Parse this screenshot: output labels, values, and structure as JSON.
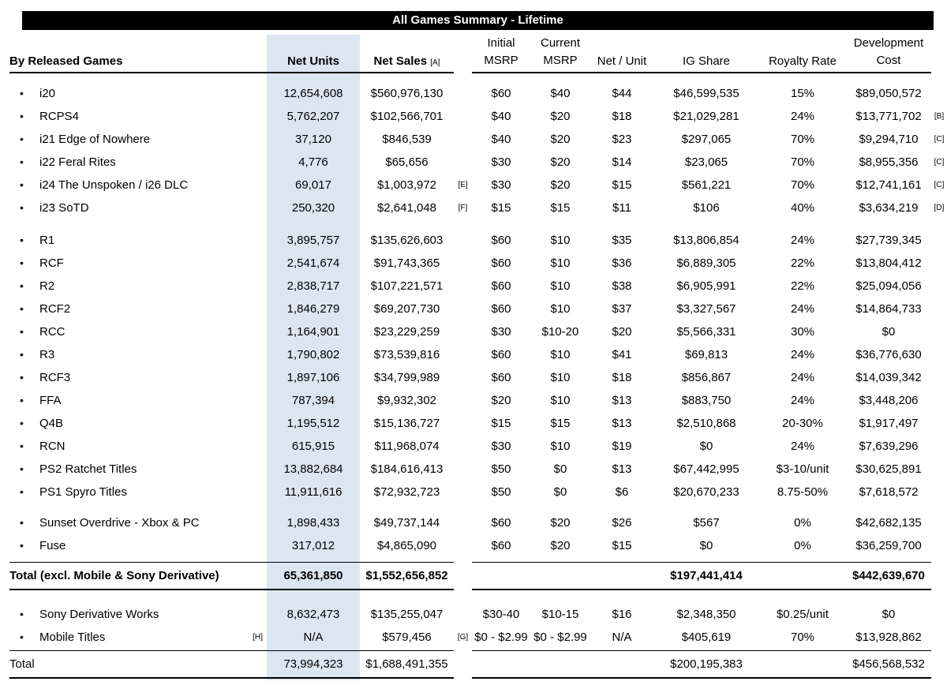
{
  "title": "All Games Summary - Lifetime",
  "accent_color": "#dce6f1",
  "header": {
    "by_released_games": "By Released Games",
    "net_units": "Net Units",
    "net_sales": "Net Sales",
    "net_sales_note": "[A]",
    "initial_msrp_line1": "Initial",
    "initial_msrp_line2": "MSRP",
    "current_msrp_line1": "Current",
    "current_msrp_line2": "MSRP",
    "net_per_unit": "Net / Unit",
    "ig_share": "IG Share",
    "royalty_rate": "Royalty Rate",
    "development_cost_line1": "Development",
    "development_cost_line2": "Cost"
  },
  "groups": [
    {
      "rows": [
        {
          "name": "i20",
          "net_units": "12,654,608",
          "net_sales": "$560,976,130",
          "initial_msrp": "$60",
          "current_msrp": "$40",
          "net_per_unit": "$44",
          "ig_share": "$46,599,535",
          "royalty_rate": "15%",
          "dev_cost": "$89,050,572"
        },
        {
          "name": "RCPS4",
          "net_units": "5,762,207",
          "net_sales": "$102,566,701",
          "initial_msrp": "$40",
          "current_msrp": "$20",
          "net_per_unit": "$18",
          "ig_share": "$21,029,281",
          "royalty_rate": "24%",
          "dev_cost": "$13,771,702",
          "note_dev": "[B]"
        },
        {
          "name": "i21 Edge of Nowhere",
          "net_units": "37,120",
          "net_sales": "$846,539",
          "initial_msrp": "$40",
          "current_msrp": "$20",
          "net_per_unit": "$23",
          "ig_share": "$297,065",
          "royalty_rate": "70%",
          "dev_cost": "$9,294,710",
          "note_dev": "[C]"
        },
        {
          "name": "i22 Feral Rites",
          "net_units": "4,776",
          "net_sales": "$65,656",
          "initial_msrp": "$30",
          "current_msrp": "$20",
          "net_per_unit": "$14",
          "ig_share": "$23,065",
          "royalty_rate": "70%",
          "dev_cost": "$8,955,356",
          "note_dev": "[C]"
        },
        {
          "name": "i24 The Unspoken / i26 DLC",
          "net_units": "69,017",
          "net_sales": "$1,003,972",
          "note_sales": "[E]",
          "initial_msrp": "$30",
          "current_msrp": "$20",
          "net_per_unit": "$15",
          "ig_share": "$561,221",
          "royalty_rate": "70%",
          "dev_cost": "$12,741,161",
          "note_dev": "[C]"
        },
        {
          "name": "i23 SoTD",
          "net_units": "250,320",
          "net_sales": "$2,641,048",
          "note_sales": "[F]",
          "initial_msrp": "$15",
          "current_msrp": "$15",
          "net_per_unit": "$11",
          "ig_share": "$106",
          "royalty_rate": "40%",
          "dev_cost": "$3,634,219",
          "note_dev": "[D]"
        }
      ]
    },
    {
      "rows": [
        {
          "name": "R1",
          "net_units": "3,895,757",
          "net_sales": "$135,626,603",
          "initial_msrp": "$60",
          "current_msrp": "$10",
          "net_per_unit": "$35",
          "ig_share": "$13,806,854",
          "royalty_rate": "24%",
          "dev_cost": "$27,739,345"
        },
        {
          "name": "RCF",
          "net_units": "2,541,674",
          "net_sales": "$91,743,365",
          "initial_msrp": "$60",
          "current_msrp": "$10",
          "net_per_unit": "$36",
          "ig_share": "$6,889,305",
          "royalty_rate": "22%",
          "dev_cost": "$13,804,412"
        },
        {
          "name": "R2",
          "net_units": "2,838,717",
          "net_sales": "$107,221,571",
          "initial_msrp": "$60",
          "current_msrp": "$10",
          "net_per_unit": "$38",
          "ig_share": "$6,905,991",
          "royalty_rate": "22%",
          "dev_cost": "$25,094,056"
        },
        {
          "name": "RCF2",
          "net_units": "1,846,279",
          "net_sales": "$69,207,730",
          "initial_msrp": "$60",
          "current_msrp": "$10",
          "net_per_unit": "$37",
          "ig_share": "$3,327,567",
          "royalty_rate": "24%",
          "dev_cost": "$14,864,733"
        },
        {
          "name": "RCC",
          "net_units": "1,164,901",
          "net_sales": "$23,229,259",
          "initial_msrp": "$30",
          "current_msrp": "$10-20",
          "net_per_unit": "$20",
          "ig_share": "$5,566,331",
          "royalty_rate": "30%",
          "dev_cost": "$0"
        },
        {
          "name": "R3",
          "net_units": "1,790,802",
          "net_sales": "$73,539,816",
          "initial_msrp": "$60",
          "current_msrp": "$10",
          "net_per_unit": "$41",
          "ig_share": "$69,813",
          "royalty_rate": "24%",
          "dev_cost": "$36,776,630"
        },
        {
          "name": "RCF3",
          "net_units": "1,897,106",
          "net_sales": "$34,799,989",
          "initial_msrp": "$60",
          "current_msrp": "$10",
          "net_per_unit": "$18",
          "ig_share": "$856,867",
          "royalty_rate": "24%",
          "dev_cost": "$14,039,342"
        },
        {
          "name": "FFA",
          "net_units": "787,394",
          "net_sales": "$9,932,302",
          "initial_msrp": "$20",
          "current_msrp": "$10",
          "net_per_unit": "$13",
          "ig_share": "$883,750",
          "royalty_rate": "24%",
          "dev_cost": "$3,448,206"
        },
        {
          "name": "Q4B",
          "net_units": "1,195,512",
          "net_sales": "$15,136,727",
          "initial_msrp": "$15",
          "current_msrp": "$15",
          "net_per_unit": "$13",
          "ig_share": "$2,510,868",
          "royalty_rate": "20-30%",
          "dev_cost": "$1,917,497"
        },
        {
          "name": "RCN",
          "net_units": "615,915",
          "net_sales": "$11,968,074",
          "initial_msrp": "$30",
          "current_msrp": "$10",
          "net_per_unit": "$19",
          "ig_share": "$0",
          "royalty_rate": "24%",
          "dev_cost": "$7,639,296"
        },
        {
          "name": "PS2 Ratchet Titles",
          "net_units": "13,882,684",
          "net_sales": "$184,616,413",
          "initial_msrp": "$50",
          "current_msrp": "$0",
          "net_per_unit": "$13",
          "ig_share": "$67,442,995",
          "royalty_rate": "$3-10/unit",
          "dev_cost": "$30,625,891"
        },
        {
          "name": "PS1 Spyro Titles",
          "net_units": "11,911,616",
          "net_sales": "$72,932,723",
          "initial_msrp": "$50",
          "current_msrp": "$0",
          "net_per_unit": "$6",
          "ig_share": "$20,670,233",
          "royalty_rate": "8.75-50%",
          "dev_cost": "$7,618,572"
        }
      ]
    },
    {
      "rows": [
        {
          "name": "Sunset Overdrive - Xbox & PC",
          "net_units": "1,898,433",
          "net_sales": "$49,737,144",
          "initial_msrp": "$60",
          "current_msrp": "$20",
          "net_per_unit": "$26",
          "ig_share": "$567",
          "royalty_rate": "0%",
          "dev_cost": "$42,682,135"
        },
        {
          "name": "Fuse",
          "net_units": "317,012",
          "net_sales": "$4,865,090",
          "initial_msrp": "$60",
          "current_msrp": "$20",
          "net_per_unit": "$15",
          "ig_share": "$0",
          "royalty_rate": "0%",
          "dev_cost": "$36,259,700"
        }
      ]
    },
    {
      "rows": [
        {
          "name": "Sony Derivative Works",
          "net_units": "8,632,473",
          "net_sales": "$135,255,047",
          "initial_msrp": "$30-40",
          "current_msrp": "$10-15",
          "net_per_unit": "$16",
          "ig_share": "$2,348,350",
          "royalty_rate": "$0.25/unit",
          "dev_cost": "$0"
        },
        {
          "name": "Mobile Titles",
          "note_name": "[H]",
          "net_units": "N/A",
          "net_sales": "$579,456",
          "note_sales": "[G]",
          "initial_msrp": "$0 - $2.99",
          "current_msrp": "$0 - $2.99",
          "net_per_unit": "N/A",
          "ig_share": "$405,619",
          "royalty_rate": "70%",
          "dev_cost": "$13,928,862"
        }
      ]
    }
  ],
  "totals": [
    {
      "label": "Total (excl. Mobile & Sony Derivative)",
      "net_units": "65,361,850",
      "net_sales": "$1,552,656,852",
      "ig_share": "$197,441,414",
      "dev_cost": "$442,639,670",
      "bold": true
    },
    {
      "label": "Total",
      "net_units": "73,994,323",
      "net_sales": "$1,688,491,355",
      "ig_share": "$200,195,383",
      "dev_cost": "$456,568,532",
      "bold": false
    }
  ]
}
